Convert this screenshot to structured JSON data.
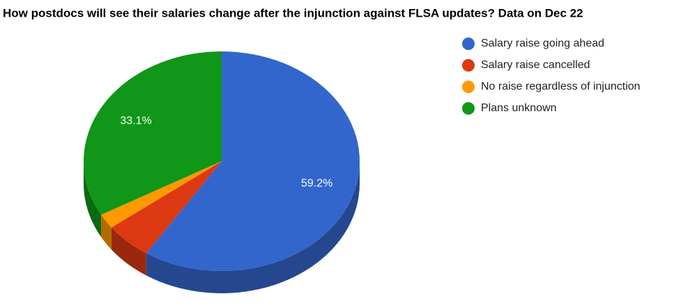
{
  "chart_data": {
    "type": "pie3d",
    "title": "How postdocs will see their salaries change after the injunction against FLSA updates? Data on Dec 22",
    "categories": [
      "Salary raise going ahead",
      "Salary raise cancelled",
      "No raise regardless of injunction",
      "Plans unknown"
    ],
    "values": [
      59.2,
      5.5,
      2.2,
      33.1
    ],
    "value_labels": [
      "59.2%",
      null,
      null,
      "33.1%"
    ],
    "colors": [
      "#3366cc",
      "#dc3912",
      "#ff9900",
      "#109618"
    ],
    "legend": "right"
  }
}
